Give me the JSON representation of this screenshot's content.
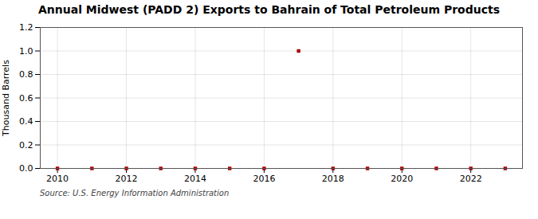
{
  "chart_data": {
    "type": "scatter",
    "title": "Annual Midwest (PADD 2) Exports to Bahrain of Total Petroleum Products",
    "ylabel": "Thousand Barrels",
    "caption": "Source: U.S. Energy Information Administration",
    "x": [
      2010,
      2011,
      2012,
      2013,
      2014,
      2015,
      2016,
      2017,
      2018,
      2019,
      2020,
      2021,
      2022,
      2023
    ],
    "values": [
      0,
      0,
      0,
      0,
      0,
      0,
      0,
      1.0,
      0,
      0,
      0,
      0,
      0,
      0
    ],
    "color": "#aa0000",
    "marker": "square",
    "xlim": [
      2009.5,
      2023.5
    ],
    "xticks": [
      2010,
      2012,
      2014,
      2016,
      2018,
      2020,
      2022
    ],
    "ylim": [
      0,
      1.2
    ],
    "yticks": [
      {
        "value": 0,
        "label": "0.0"
      },
      0.2,
      0.4,
      0.6,
      0.8,
      {
        "value": 1.0,
        "label": "1.0"
      },
      1.2
    ],
    "grid": true
  }
}
